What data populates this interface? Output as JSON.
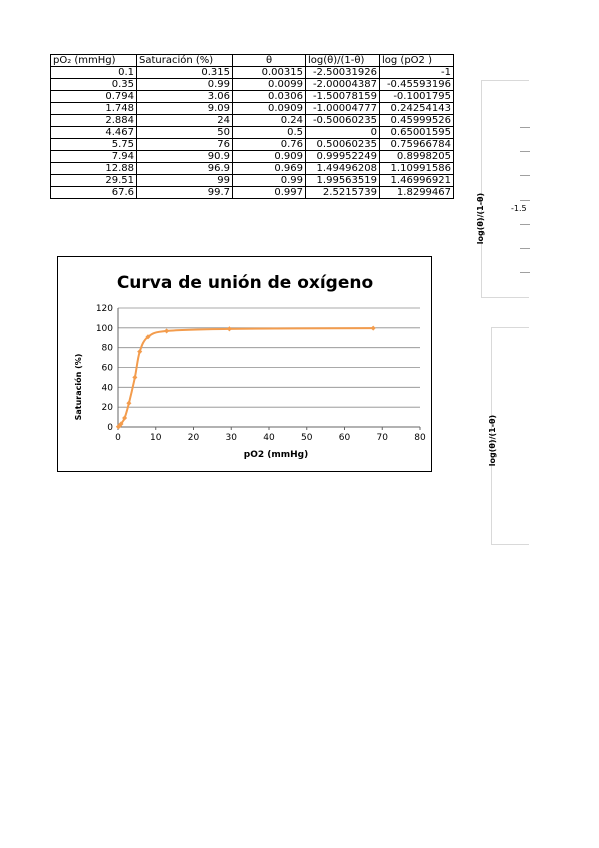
{
  "table": {
    "headers": [
      "pO₂ (mmHg)",
      "Saturación (%)",
      "θ",
      "log(θ)/(1-θ)",
      "log (pO2 )"
    ],
    "rows": [
      [
        "0.1",
        "0.315",
        "0.00315",
        "-2.50031926",
        "-1"
      ],
      [
        "0.35",
        "0.99",
        "0.0099",
        "-2.00004387",
        "-0.45593196"
      ],
      [
        "0.794",
        "3.06",
        "0.0306",
        "-1.50078159",
        "-0.1001795"
      ],
      [
        "1.748",
        "9.09",
        "0.0909",
        "-1.00004777",
        "0.24254143"
      ],
      [
        "2.884",
        "24",
        "0.24",
        "-0.50060235",
        "0.45999526"
      ],
      [
        "4.467",
        "50",
        "0.5",
        "0",
        "0.65001595"
      ],
      [
        "5.75",
        "76",
        "0.76",
        "0.50060235",
        "0.75966784"
      ],
      [
        "7.94",
        "90.9",
        "0.909",
        "0.99952249",
        "0.8998205"
      ],
      [
        "12.88",
        "96.9",
        "0.969",
        "1.49496208",
        "1.10991586"
      ],
      [
        "29.51",
        "99",
        "0.99",
        "1.99563519",
        "1.46996921"
      ],
      [
        "67.6",
        "99.7",
        "0.997",
        "2.5215739",
        "1.8299467"
      ]
    ]
  },
  "chart_data": {
    "type": "line",
    "title": "Curva de unión de oxígeno",
    "xlabel": "pO2 (mmHg)",
    "ylabel": "Saturación (%)",
    "xlim": [
      0,
      80
    ],
    "ylim": [
      0,
      120
    ],
    "x_ticks": [
      "0",
      "10",
      "20",
      "30",
      "40",
      "50",
      "60",
      "70",
      "80"
    ],
    "y_ticks": [
      "0",
      "20",
      "40",
      "60",
      "80",
      "100",
      "120"
    ],
    "grid": true,
    "legend": "none",
    "color": "#f39c4d",
    "series": [
      {
        "x": [
          0.1,
          0.35,
          0.794,
          1.748,
          2.884,
          4.467,
          5.75,
          7.94,
          12.88,
          29.51,
          67.6
        ],
        "y": [
          0.315,
          0.99,
          3.06,
          9.09,
          24,
          50,
          76,
          90.9,
          96.9,
          99,
          99.7
        ]
      }
    ]
  },
  "side_charts": {
    "top": {
      "ylabel": "log(θ)/(1-θ)",
      "tick_label": "-1.5"
    },
    "bottom": {
      "ylabel": "log(θ)/(1-θ)"
    }
  }
}
